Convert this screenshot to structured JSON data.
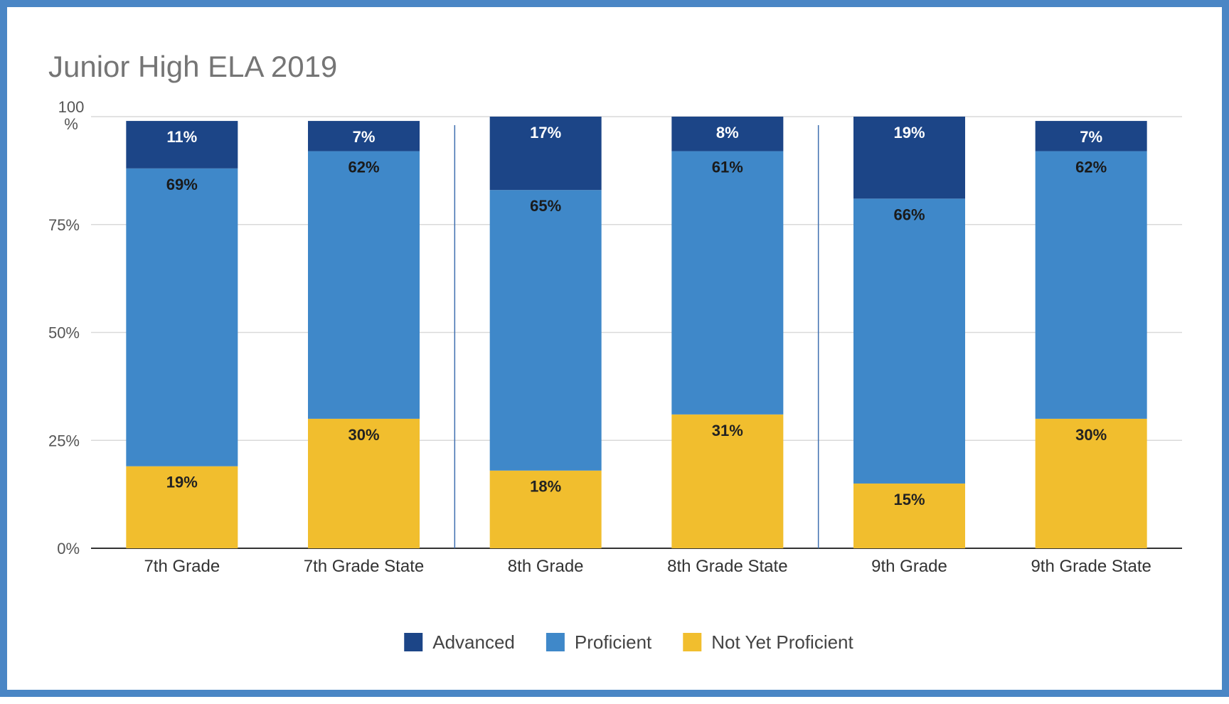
{
  "chart_data": {
    "type": "bar",
    "stacked": true,
    "title": "Junior High ELA 2019",
    "categories": [
      "7th Grade",
      "7th Grade State",
      "8th Grade",
      "8th Grade State",
      "9th Grade",
      "9th Grade State"
    ],
    "series": [
      {
        "name": "Not Yet Proficient",
        "color": "#f1be2e",
        "label_color": "#222222",
        "values": [
          19,
          30,
          18,
          31,
          15,
          30
        ],
        "labels": [
          "19%",
          "30%",
          "18%",
          "31%",
          "15%",
          "30%"
        ]
      },
      {
        "name": "Proficient",
        "color": "#3f88c9",
        "label_color": "#1a1a1a",
        "values": [
          69,
          62,
          65,
          61,
          66,
          62
        ],
        "labels": [
          "69%",
          "62%",
          "65%",
          "61%",
          "66%",
          "62%"
        ]
      },
      {
        "name": "Advanced",
        "color": "#1c4587",
        "label_color": "#ffffff",
        "values": [
          11,
          7,
          17,
          8,
          19,
          7
        ],
        "labels": [
          "11%",
          "7%",
          "17%",
          "8%",
          "19%",
          "7%"
        ]
      }
    ],
    "y_ticks": [
      {
        "value": 0,
        "label": "0%"
      },
      {
        "value": 25,
        "label": "25%"
      },
      {
        "value": 50,
        "label": "50%"
      },
      {
        "value": 75,
        "label": "75%"
      },
      {
        "value": 100,
        "label": "100 %"
      }
    ],
    "ylim": [
      0,
      100
    ],
    "legend": {
      "position": "bottom",
      "items": [
        {
          "name": "Advanced",
          "color": "#1c4587"
        },
        {
          "name": "Proficient",
          "color": "#3f88c9"
        },
        {
          "name": "Not Yet Proficient",
          "color": "#f1be2e"
        }
      ]
    },
    "grid": true,
    "separators_after_category": [
      1,
      3
    ]
  }
}
